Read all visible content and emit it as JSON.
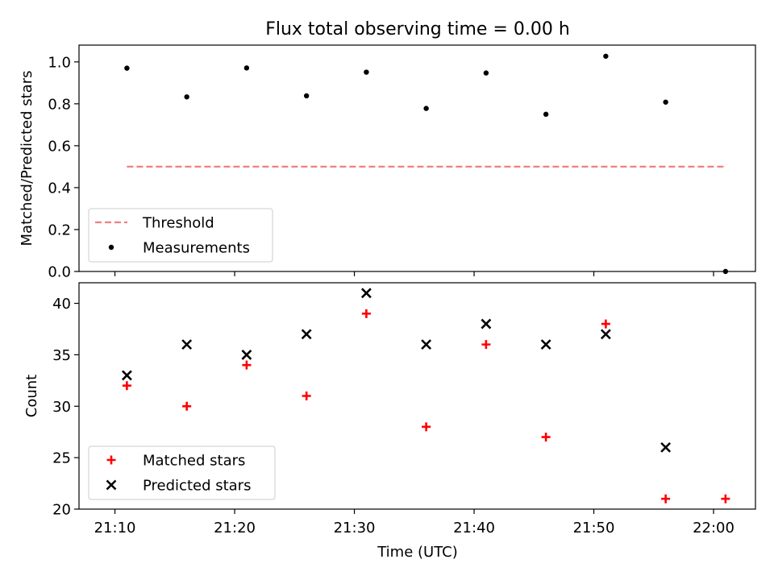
{
  "chart_data": {
    "title": "Flux total observing time = 0.00 h",
    "xlabel": "Time (UTC)",
    "x_ticks": [
      "21:10",
      "21:20",
      "21:30",
      "21:40",
      "21:50",
      "22:00"
    ],
    "panels": [
      {
        "type": "scatter",
        "ylabel": "Matched/Predicted stars",
        "ylim": [
          0,
          1.08
        ],
        "y_ticks": [
          "0.0",
          "0.2",
          "0.4",
          "0.6",
          "0.8",
          "1.0"
        ],
        "legend_position": "lower-left",
        "series": [
          {
            "name": "Threshold",
            "kind": "dashed-line",
            "color": "#f08080",
            "x": [
              "21:11",
              "22:01"
            ],
            "values": [
              0.5,
              0.5
            ]
          },
          {
            "name": "Measurements",
            "kind": "dot",
            "color": "#000000",
            "x": [
              "21:11",
              "21:16",
              "21:21",
              "21:26",
              "21:31",
              "21:36",
              "21:41",
              "21:46",
              "21:51",
              "21:56",
              "22:01"
            ],
            "values": [
              0.97,
              0.833,
              0.971,
              0.838,
              0.951,
              0.778,
              0.947,
              0.75,
              1.027,
              0.808,
              0.0
            ]
          }
        ]
      },
      {
        "type": "scatter",
        "ylabel": "Count",
        "ylim": [
          20,
          42
        ],
        "y_ticks": [
          "20",
          "25",
          "30",
          "35",
          "40"
        ],
        "legend_position": "lower-left",
        "series": [
          {
            "name": "Matched stars",
            "kind": "plus",
            "color": "#ff0000",
            "x": [
              "21:11",
              "21:16",
              "21:21",
              "21:26",
              "21:31",
              "21:36",
              "21:41",
              "21:46",
              "21:51",
              "21:56",
              "22:01"
            ],
            "values": [
              32,
              30,
              34,
              31,
              39,
              28,
              36,
              27,
              38,
              21,
              21
            ]
          },
          {
            "name": "Predicted stars",
            "kind": "cross",
            "color": "#000000",
            "x": [
              "21:11",
              "21:16",
              "21:21",
              "21:26",
              "21:31",
              "21:36",
              "21:41",
              "21:46",
              "21:51",
              "21:56"
            ],
            "values": [
              33,
              36,
              35,
              37,
              41,
              36,
              38,
              36,
              37,
              26
            ]
          }
        ]
      }
    ]
  }
}
